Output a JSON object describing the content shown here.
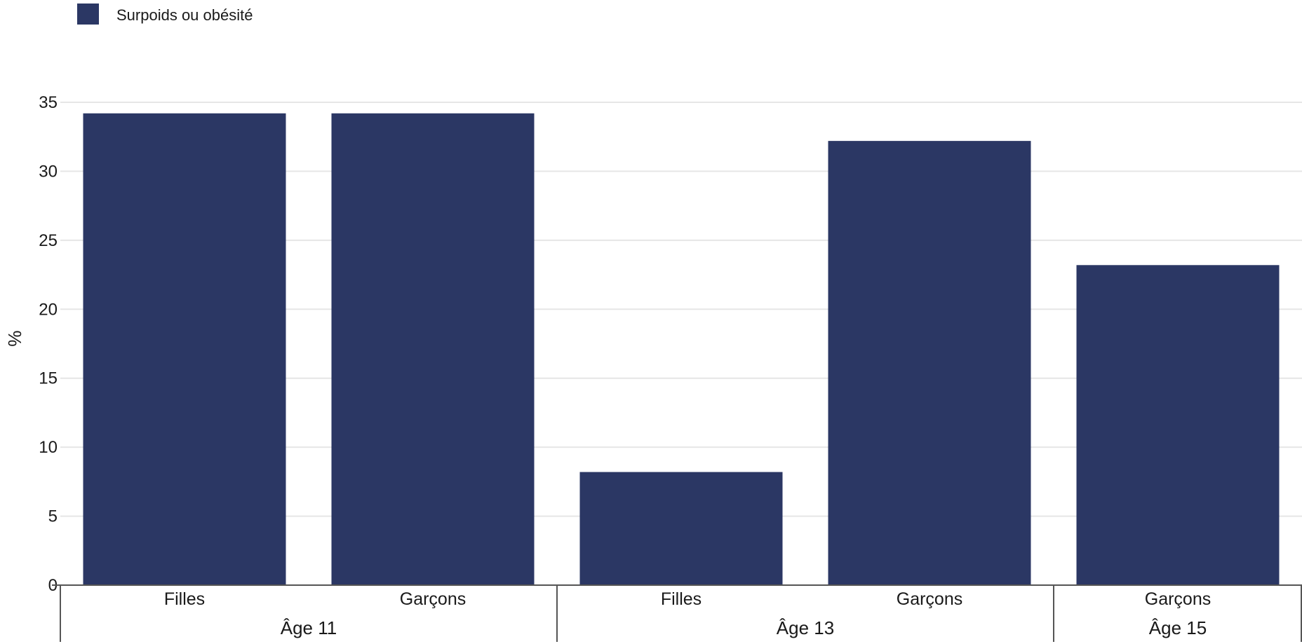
{
  "chart_data": {
    "type": "bar",
    "ylabel": "%",
    "ylim": [
      0,
      35
    ],
    "yticks": [
      0,
      5,
      10,
      15,
      20,
      25,
      30,
      35
    ],
    "grid": true,
    "legend_position": "top-left",
    "series": [
      {
        "name": "Surpoids ou obésité",
        "color": "#2b3764",
        "values": [
          34.2,
          34.2,
          8.2,
          32.2,
          23.2
        ]
      }
    ],
    "categories": [
      "Filles",
      "Garçons",
      "Filles",
      "Garçons",
      "Garçons"
    ],
    "groups": [
      {
        "label": "Âge 11",
        "size": 2
      },
      {
        "label": "Âge 13",
        "size": 2
      },
      {
        "label": "Âge 15",
        "size": 1
      }
    ]
  }
}
